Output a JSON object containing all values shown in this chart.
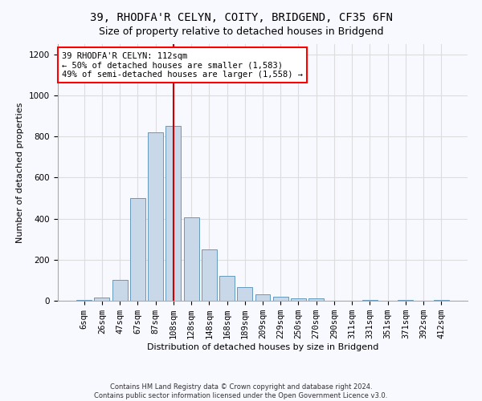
{
  "title": "39, RHODFA'R CELYN, COITY, BRIDGEND, CF35 6FN",
  "subtitle": "Size of property relative to detached houses in Bridgend",
  "xlabel": "Distribution of detached houses by size in Bridgend",
  "ylabel": "Number of detached properties",
  "footer_line1": "Contains HM Land Registry data © Crown copyright and database right 2024.",
  "footer_line2": "Contains public sector information licensed under the Open Government Licence v3.0.",
  "annotation_line1": "39 RHODFA'R CELYN: 112sqm",
  "annotation_line2": "← 50% of detached houses are smaller (1,583)",
  "annotation_line3": "49% of semi-detached houses are larger (1,558) →",
  "bar_labels": [
    "6sqm",
    "26sqm",
    "47sqm",
    "67sqm",
    "87sqm",
    "108sqm",
    "128sqm",
    "148sqm",
    "168sqm",
    "189sqm",
    "209sqm",
    "229sqm",
    "250sqm",
    "270sqm",
    "290sqm",
    "311sqm",
    "331sqm",
    "351sqm",
    "371sqm",
    "392sqm",
    "412sqm"
  ],
  "bar_values": [
    5,
    15,
    100,
    500,
    820,
    850,
    405,
    250,
    120,
    65,
    30,
    20,
    10,
    10,
    0,
    0,
    5,
    0,
    5,
    0,
    2
  ],
  "bar_color": "#c8d8e8",
  "bar_edge_color": "#6699bb",
  "vline_x_idx": 5,
  "vline_color": "#cc0000",
  "ylim": [
    0,
    1250
  ],
  "yticks": [
    0,
    200,
    400,
    600,
    800,
    1000,
    1200
  ],
  "grid_color": "#dddddd",
  "background_color": "#f8f8ff",
  "title_fontsize": 10,
  "subtitle_fontsize": 9,
  "axis_label_fontsize": 8,
  "tick_fontsize": 7.5,
  "annotation_fontsize": 7.5,
  "footer_fontsize": 6
}
